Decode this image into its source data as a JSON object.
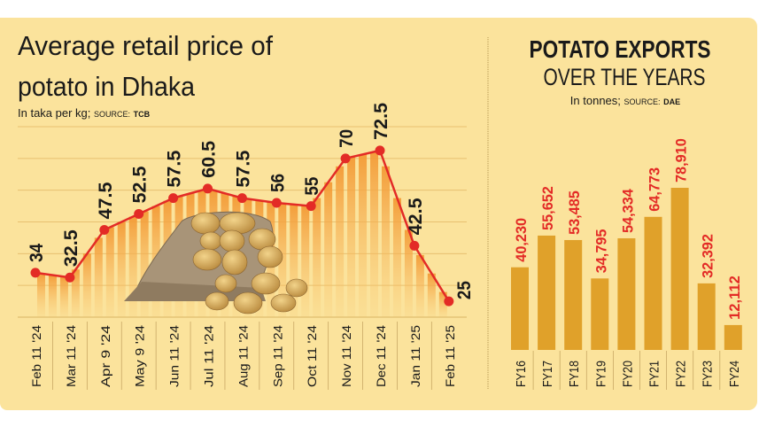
{
  "colors": {
    "background": "#fbe39c",
    "line": "#e32b26",
    "bars": "#e0a12a",
    "bar_labels": "#e32b26",
    "stripes": "#f5a040",
    "text": "#1a1a1a"
  },
  "chart_data": [
    {
      "type": "line",
      "title": "Average retail price of potato in Dhaka",
      "subtitle": "In taka per kg;",
      "source_label": "SOURCE:",
      "source": "TCB",
      "categories": [
        "Feb 11 '24",
        "Mar 11 '24",
        "Apr 9 '24",
        "May 9 '24",
        "Jun 11 '24",
        "Jul 11 '24",
        "Aug 11 '24",
        "Sep 11 '24",
        "Oct 11 '24",
        "Nov 11 '24",
        "Dec 11 '24",
        "Jan 11 '25",
        "Feb 11 '25"
      ],
      "values": [
        34,
        32.5,
        47.5,
        52.5,
        57.5,
        60.5,
        57.5,
        56,
        55,
        70,
        72.5,
        42.5,
        25
      ],
      "data_labels": [
        "34",
        "32.5",
        "47.5",
        "52.5",
        "57.5",
        "60.5",
        "57.5",
        "56",
        "55",
        "70",
        "72.5",
        "42.5",
        "25"
      ],
      "ylim": [
        20,
        80
      ],
      "grid": true,
      "image": "potato-sack"
    },
    {
      "type": "bar",
      "title": "POTATO EXPORTS",
      "title_line2": "OVER THE YEARS",
      "subtitle": "In tonnes;",
      "source_label": "SOURCE:",
      "source": "DAE",
      "categories": [
        "FY16",
        "FY17",
        "FY18",
        "FY19",
        "FY20",
        "FY21",
        "FY22",
        "FY23",
        "FY24"
      ],
      "values": [
        40230,
        55652,
        53485,
        34795,
        54334,
        64773,
        78910,
        32392,
        12112
      ],
      "data_labels": [
        "40,230",
        "55,652",
        "53,485",
        "34,795",
        "54,334",
        "64,773",
        "78,910",
        "32,392",
        "12,112"
      ],
      "ylim": [
        0,
        80000
      ],
      "grid": false
    }
  ]
}
